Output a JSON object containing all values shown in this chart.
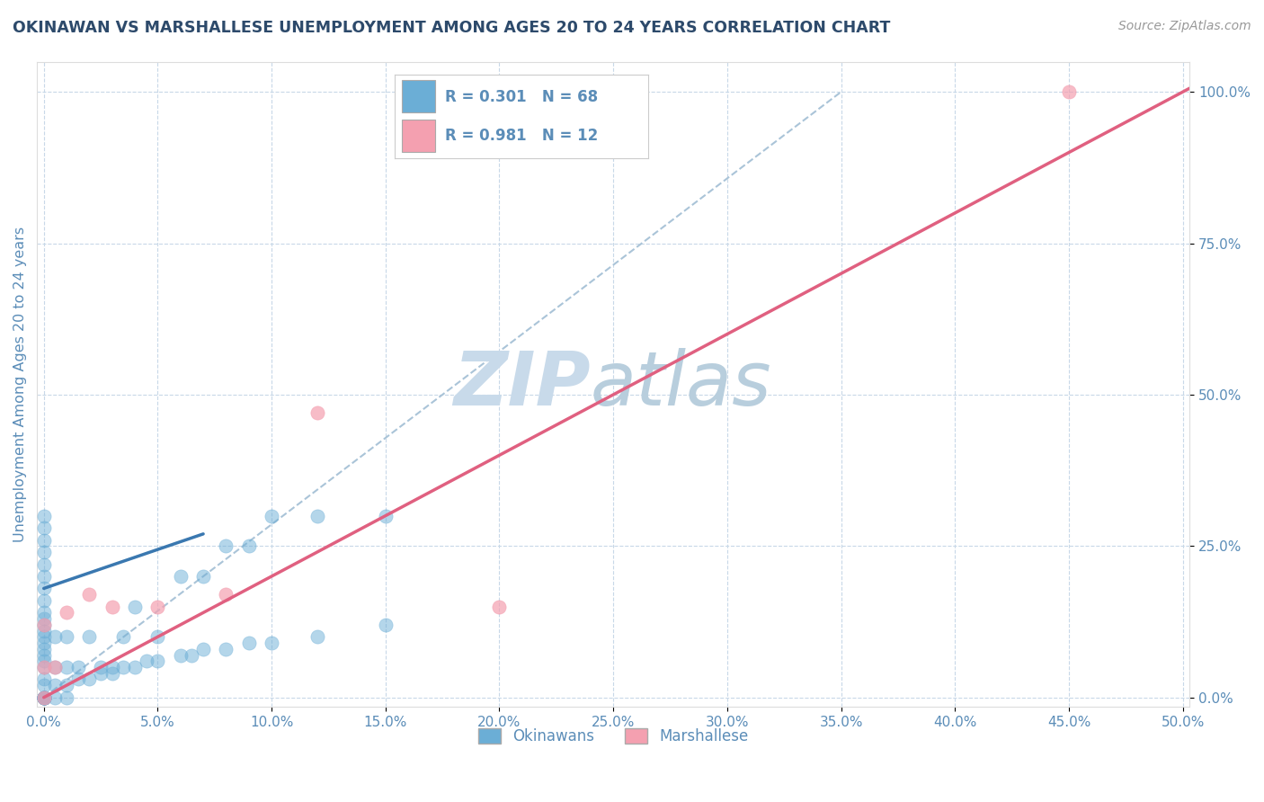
{
  "title": "OKINAWAN VS MARSHALLESE UNEMPLOYMENT AMONG AGES 20 TO 24 YEARS CORRELATION CHART",
  "source": "Source: ZipAtlas.com",
  "xlim": [
    -0.003,
    0.503
  ],
  "ylim": [
    -0.015,
    1.05
  ],
  "okinawan_color": "#6baed6",
  "okinawan_edge_color": "#4a90c4",
  "marshallese_color": "#f4a0b0",
  "marshallese_edge_color": "#e07090",
  "okinawan_R": 0.301,
  "okinawan_N": 68,
  "marshallese_R": 0.981,
  "marshallese_N": 12,
  "watermark_zip": "ZIP",
  "watermark_atlas": "atlas",
  "watermark_color_zip": "#c5d8ea",
  "watermark_color_atlas": "#b0cce0",
  "okinawan_scatter_x": [
    0.0,
    0.0,
    0.0,
    0.0,
    0.0,
    0.0,
    0.0,
    0.0,
    0.0,
    0.0,
    0.0,
    0.0,
    0.0,
    0.0,
    0.0,
    0.0,
    0.0,
    0.0,
    0.0,
    0.0,
    0.0,
    0.0,
    0.0,
    0.0,
    0.0,
    0.0,
    0.0,
    0.0,
    0.0,
    0.0,
    0.005,
    0.005,
    0.005,
    0.01,
    0.01,
    0.01,
    0.015,
    0.02,
    0.025,
    0.03,
    0.035,
    0.04,
    0.05,
    0.06,
    0.07,
    0.08,
    0.09,
    0.1,
    0.12,
    0.15,
    0.005,
    0.01,
    0.015,
    0.02,
    0.025,
    0.03,
    0.035,
    0.04,
    0.045,
    0.05,
    0.06,
    0.065,
    0.07,
    0.08,
    0.09,
    0.1,
    0.12,
    0.15
  ],
  "okinawan_scatter_y": [
    0.0,
    0.0,
    0.0,
    0.0,
    0.0,
    0.0,
    0.0,
    0.0,
    0.0,
    0.0,
    0.02,
    0.03,
    0.05,
    0.06,
    0.08,
    0.1,
    0.12,
    0.14,
    0.16,
    0.18,
    0.2,
    0.22,
    0.24,
    0.26,
    0.28,
    0.3,
    0.07,
    0.09,
    0.11,
    0.13,
    0.0,
    0.05,
    0.1,
    0.0,
    0.05,
    0.1,
    0.05,
    0.1,
    0.05,
    0.05,
    0.1,
    0.15,
    0.1,
    0.2,
    0.2,
    0.25,
    0.25,
    0.3,
    0.3,
    0.3,
    0.02,
    0.02,
    0.03,
    0.03,
    0.04,
    0.04,
    0.05,
    0.05,
    0.06,
    0.06,
    0.07,
    0.07,
    0.08,
    0.08,
    0.09,
    0.09,
    0.1,
    0.12
  ],
  "marshallese_scatter_x": [
    0.0,
    0.0,
    0.0,
    0.005,
    0.01,
    0.02,
    0.03,
    0.05,
    0.08,
    0.12,
    0.2,
    0.45
  ],
  "marshallese_scatter_y": [
    0.0,
    0.05,
    0.12,
    0.05,
    0.14,
    0.17,
    0.15,
    0.15,
    0.17,
    0.47,
    0.15,
    1.0
  ],
  "okinawan_line_x": [
    0.0,
    0.07
  ],
  "okinawan_line_y": [
    0.18,
    0.27
  ],
  "marshallese_line_x": [
    0.0,
    0.503
  ],
  "marshallese_line_y": [
    0.0,
    1.006
  ],
  "ref_line_x": [
    0.0,
    0.35
  ],
  "ref_line_y": [
    0.0,
    1.0
  ],
  "ref_line_color": "#aac4d8",
  "title_color": "#2d4a6b",
  "axis_label_color": "#5b8db8",
  "tick_label_color": "#5b8db8",
  "grid_color": "#c8d8e8",
  "legend_R_color": "#5b8db8",
  "legend_box_color": "#eaf0f8",
  "source_color": "#999999",
  "xtick_vals": [
    0.0,
    0.05,
    0.1,
    0.15,
    0.2,
    0.25,
    0.3,
    0.35,
    0.4,
    0.45,
    0.5
  ],
  "ytick_vals": [
    0.0,
    0.25,
    0.5,
    0.75,
    1.0
  ]
}
